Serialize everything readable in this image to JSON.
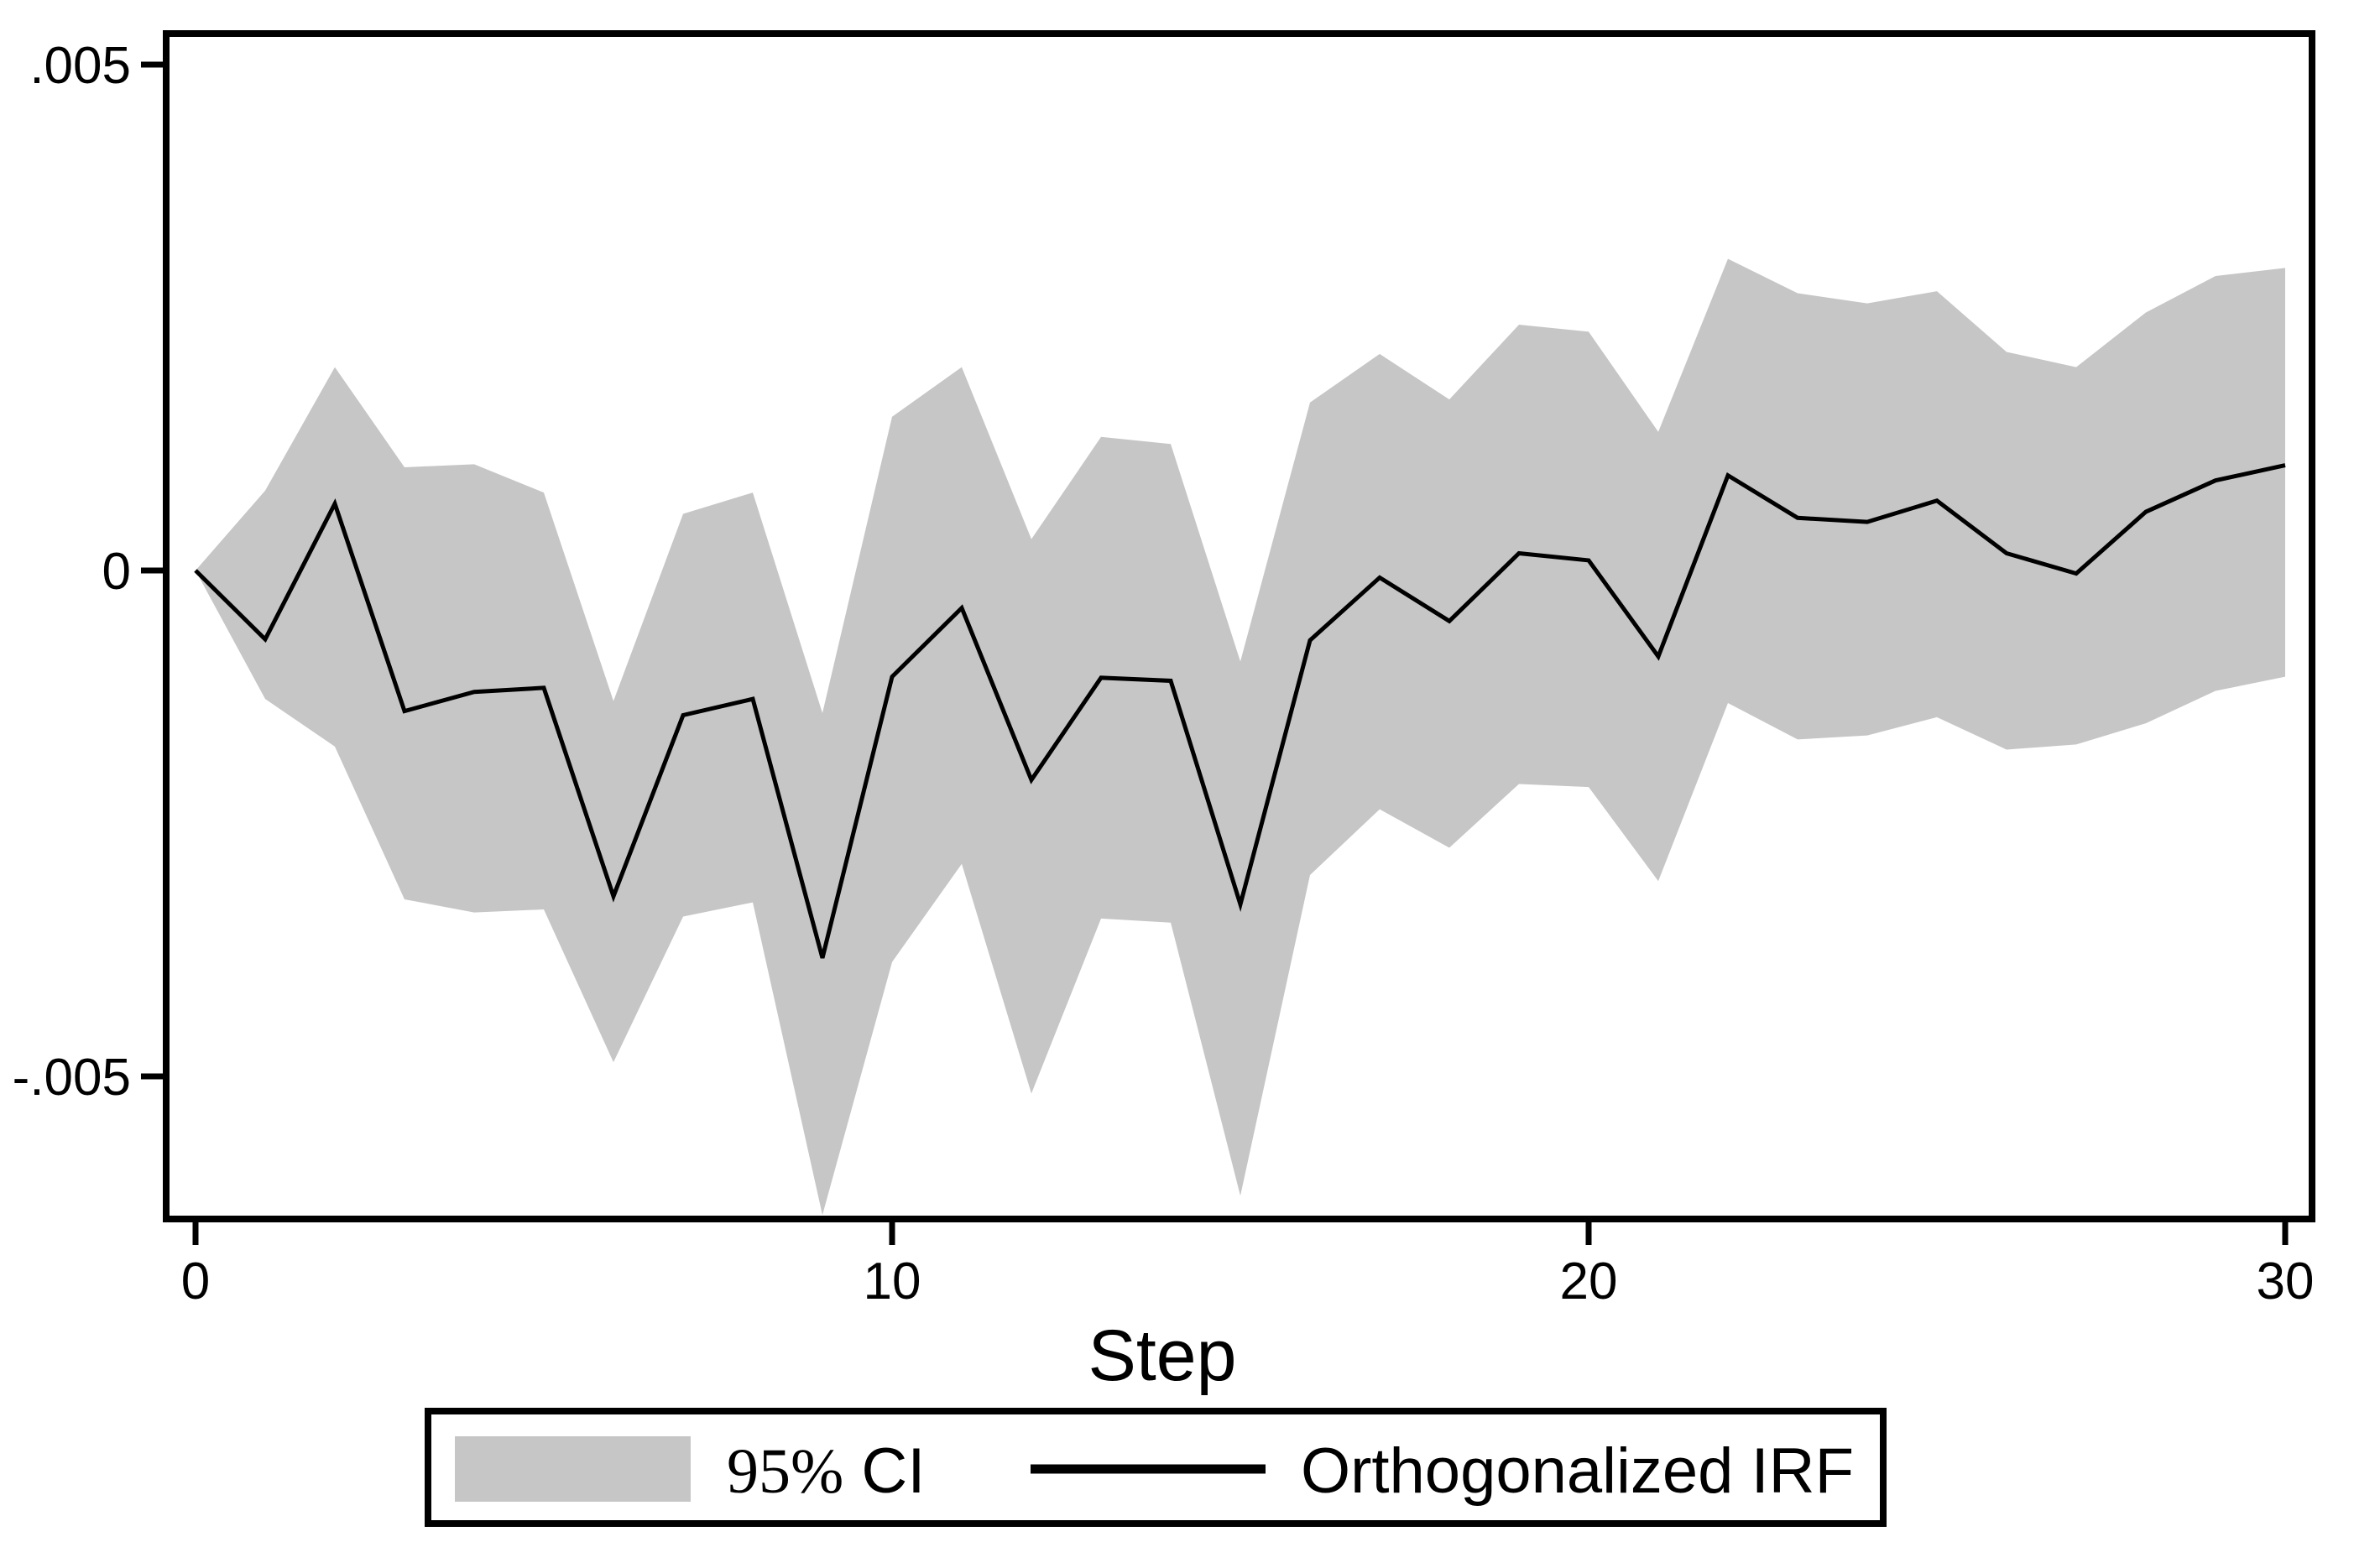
{
  "chart_data": {
    "type": "line",
    "subtype": "impulse-response-with-confidence-band",
    "title": "",
    "xlabel": "Step",
    "ylabel": "",
    "xlim": [
      0,
      30
    ],
    "ylim": [
      -0.0064,
      0.0053
    ],
    "grid": false,
    "x": [
      0,
      1,
      2,
      3,
      4,
      5,
      6,
      7,
      8,
      9,
      10,
      11,
      12,
      13,
      14,
      15,
      16,
      17,
      18,
      19,
      20,
      21,
      22,
      23,
      24,
      25,
      26,
      27,
      28,
      29,
      30
    ],
    "series": [
      {
        "name": "Orthogonalized IRF",
        "role": "line",
        "values": [
          0.0,
          -0.00068,
          0.00066,
          -0.00139,
          -0.0012,
          -0.00116,
          -0.00322,
          -0.00143,
          -0.00127,
          -0.00383,
          -0.00105,
          -0.00037,
          -0.00207,
          -0.00106,
          -0.00109,
          -0.0033,
          -0.00069,
          -7e-05,
          -0.0005,
          0.00017,
          0.0001,
          -0.00085,
          0.00094,
          0.00052,
          0.00048,
          0.00069,
          0.00017,
          -3e-05,
          0.00058,
          0.00089,
          0.00104
        ]
      },
      {
        "name": "95% CI upper bound",
        "role": "band-upper",
        "values": [
          0.0,
          0.00079,
          0.00201,
          0.00102,
          0.00105,
          0.00077,
          -0.00129,
          0.00056,
          0.00077,
          -0.00141,
          0.00152,
          0.00201,
          0.00031,
          0.00132,
          0.00125,
          -0.0009,
          0.00166,
          0.00214,
          0.00169,
          0.00243,
          0.00236,
          0.00137,
          0.00308,
          0.00274,
          0.00264,
          0.00276,
          0.00216,
          0.00201,
          0.00255,
          0.00291,
          0.00299
        ]
      },
      {
        "name": "95% CI lower bound",
        "role": "band-lower",
        "values": [
          0.0,
          -0.00127,
          -0.00174,
          -0.00325,
          -0.00338,
          -0.00335,
          -0.00486,
          -0.00342,
          -0.00328,
          -0.00637,
          -0.00387,
          -0.0029,
          -0.00517,
          -0.00344,
          -0.00348,
          -0.00618,
          -0.00301,
          -0.00236,
          -0.00274,
          -0.00211,
          -0.00214,
          -0.00307,
          -0.00131,
          -0.00167,
          -0.00163,
          -0.00145,
          -0.00177,
          -0.00172,
          -0.00151,
          -0.00119,
          -0.00105
        ]
      }
    ],
    "x_ticks": [
      {
        "value": 0,
        "label": "0"
      },
      {
        "value": 10,
        "label": "10"
      },
      {
        "value": 20,
        "label": "20"
      },
      {
        "value": 30,
        "label": "30"
      }
    ],
    "y_ticks": [
      {
        "value": 0.005,
        "label": ".005"
      },
      {
        "value": 0,
        "label": "0"
      },
      {
        "value": -0.005,
        "label": "-.005"
      }
    ],
    "legend": {
      "position": "bottom-center-boxed",
      "entries": [
        {
          "swatch": "area",
          "label": "95% CI"
        },
        {
          "swatch": "line",
          "label": "Orthogonalized IRF"
        }
      ]
    },
    "band_color": "#c6c6c6",
    "line_color": "#000000",
    "frame_color": "#000000",
    "background_color": "#ffffff"
  },
  "axes": {
    "xlabel": "Step"
  },
  "legend_labels": {
    "ci": "95% CI",
    "irf": "Orthogonalized IRF"
  }
}
